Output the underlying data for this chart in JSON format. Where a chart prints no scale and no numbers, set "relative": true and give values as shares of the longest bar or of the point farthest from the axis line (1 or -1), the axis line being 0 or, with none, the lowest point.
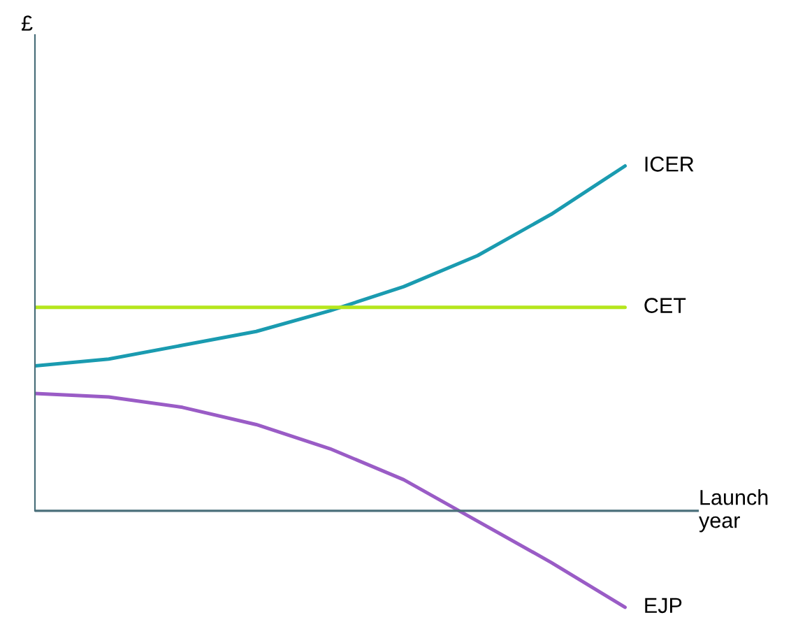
{
  "chart_data": {
    "type": "line",
    "relative": true,
    "xlabel": "Launch\nyear",
    "annotations": [
      "£"
    ],
    "ref_lines": [
      {
        "axis": "y",
        "value": 0,
        "color": "#4a6f7a"
      }
    ],
    "categories": [
      null,
      null,
      null,
      null,
      null,
      null,
      null,
      null,
      null
    ],
    "series": [
      {
        "name": "ICER",
        "color": "#1a9bb0",
        "values": [
          0.42,
          0.44,
          0.48,
          0.52,
          0.58,
          0.65,
          0.74,
          0.86,
          1.0
        ]
      },
      {
        "name": "CET",
        "color": "#b5e61d",
        "values": [
          0.59,
          0.59,
          0.59,
          0.59,
          0.59,
          0.59,
          0.59,
          0.59,
          0.59
        ]
      },
      {
        "name": "EJP",
        "color": "#9a5cc6",
        "values": [
          0.34,
          0.33,
          0.3,
          0.25,
          0.18,
          0.09,
          -0.03,
          -0.15,
          -0.28
        ]
      }
    ]
  }
}
